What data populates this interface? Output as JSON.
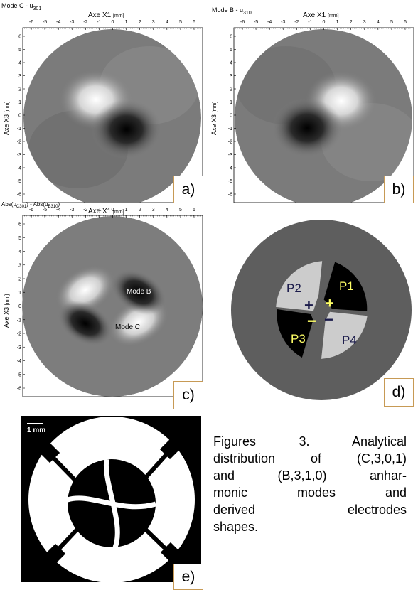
{
  "panels": {
    "a": {
      "title": "Mode C - u",
      "title_sub": "301",
      "xaxis": "Axe X1",
      "xunit": "[mm]",
      "yaxis": "Axe X3",
      "yunit": "[mm]",
      "letter": "a)"
    },
    "b": {
      "title": "Mode B - u",
      "title_sub": "310",
      "xaxis": "Axe X1",
      "xunit": "[mm]",
      "yaxis": "Axe X3",
      "yunit": "[mm]",
      "letter": "b)"
    },
    "c": {
      "title_part1": "Abs(u",
      "title_sub1": "C301",
      "title_part2": ") - Abs(u",
      "title_sub2": "B310",
      "title_part3": ")",
      "xaxis": "Axe X1",
      "xunit": "[mm]",
      "yaxis": "Axe X3",
      "yunit": "[mm]",
      "mode_b": "Mode B",
      "mode_c": "Mode C",
      "letter": "c)"
    },
    "d": {
      "p1": "P1",
      "p2": "P2",
      "p3": "P3",
      "p4": "P4",
      "plus": "+",
      "minus": "−",
      "letter": "d)"
    },
    "e": {
      "scale": "1 mm",
      "letter": "e)"
    }
  },
  "xticks": [
    "-6",
    "-5",
    "-4",
    "-3",
    "-2",
    "-1",
    "0",
    "1",
    "2",
    "3",
    "4",
    "5",
    "6"
  ],
  "yticks": [
    "6",
    "5",
    "4",
    "3",
    "2",
    "1",
    "0",
    "-1",
    "-2",
    "-3",
    "-4",
    "-5",
    "-6"
  ],
  "caption": {
    "lines": [
      "Figures 3. Analytical",
      "distribution of (C,3,0,1)",
      "and (B,3,1,0) anhar-",
      "monic modes and",
      "derived electrodes",
      "shapes."
    ]
  },
  "colors": {
    "background_grey": "#808080",
    "dark_disc": "#5e5e5e",
    "electrode_light": "#cccccc",
    "electrode_dark": "#000000",
    "label_border": "#c79a55",
    "electrode_text_dark": "#1a1a4a",
    "electrode_text_yellow": "#ffff66"
  }
}
